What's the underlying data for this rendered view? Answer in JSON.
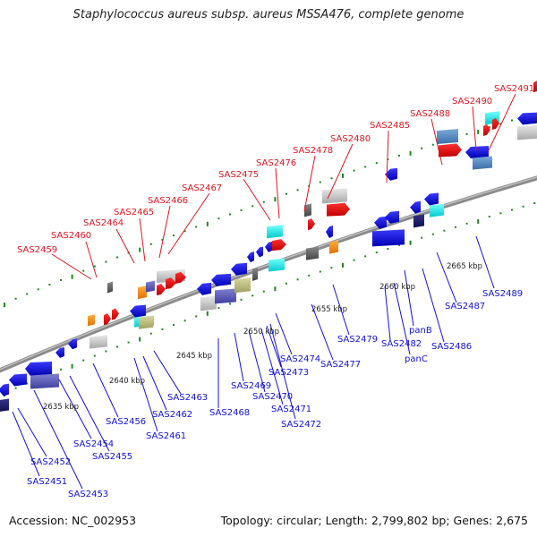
{
  "title": "Staphylococcus aureus subsp. aureus MSSA476, complete genome",
  "footer": {
    "accession": "Accession: NC_002953",
    "summary": "Topology: circular; Length: 2,799,802 bp; Genes: 2,675"
  },
  "colors": {
    "forward_gene": "#ff0000",
    "reverse_gene": "#0000ff",
    "forward_label": "#e0161d",
    "reverse_label": "#1010d8",
    "backbone": "#8a8a8a",
    "tick": "#1a8a1a"
  },
  "kbp_labels": [
    {
      "text": "2635 kbp"
    },
    {
      "text": "2640 kbp"
    },
    {
      "text": "2645 kbp"
    },
    {
      "text": "2650 kbp"
    },
    {
      "text": "2655 kbp"
    },
    {
      "text": "2660 kbp"
    },
    {
      "text": "2665 kbp"
    }
  ],
  "forward_labels": [
    {
      "text": "SAS2459"
    },
    {
      "text": "SAS2460"
    },
    {
      "text": "SAS2464"
    },
    {
      "text": "SAS2465"
    },
    {
      "text": "SAS2466"
    },
    {
      "text": "SAS2467"
    },
    {
      "text": "SAS2475"
    },
    {
      "text": "SAS2476"
    },
    {
      "text": "SAS2478"
    },
    {
      "text": "SAS2480"
    },
    {
      "text": "SAS2485"
    },
    {
      "text": "SAS2488"
    },
    {
      "text": "SAS2490"
    },
    {
      "text": "SAS2491"
    }
  ],
  "reverse_labels": [
    {
      "text": "SAS2452"
    },
    {
      "text": "SAS2451"
    },
    {
      "text": "SAS2453"
    },
    {
      "text": "SAS2454"
    },
    {
      "text": "SAS2455"
    },
    {
      "text": "SAS2456"
    },
    {
      "text": "SAS2461"
    },
    {
      "text": "SAS2462"
    },
    {
      "text": "SAS2463"
    },
    {
      "text": "SAS2468"
    },
    {
      "text": "SAS2469"
    },
    {
      "text": "SAS2470"
    },
    {
      "text": "SAS2471"
    },
    {
      "text": "SAS2472"
    },
    {
      "text": "SAS2473"
    },
    {
      "text": "SAS2474"
    },
    {
      "text": "SAS2477"
    },
    {
      "text": "SAS2479"
    },
    {
      "text": "SAS2482"
    },
    {
      "text": "panB"
    },
    {
      "text": "panC"
    },
    {
      "text": "SAS2486"
    },
    {
      "text": "SAS2487"
    },
    {
      "text": "SAS2489"
    }
  ]
}
